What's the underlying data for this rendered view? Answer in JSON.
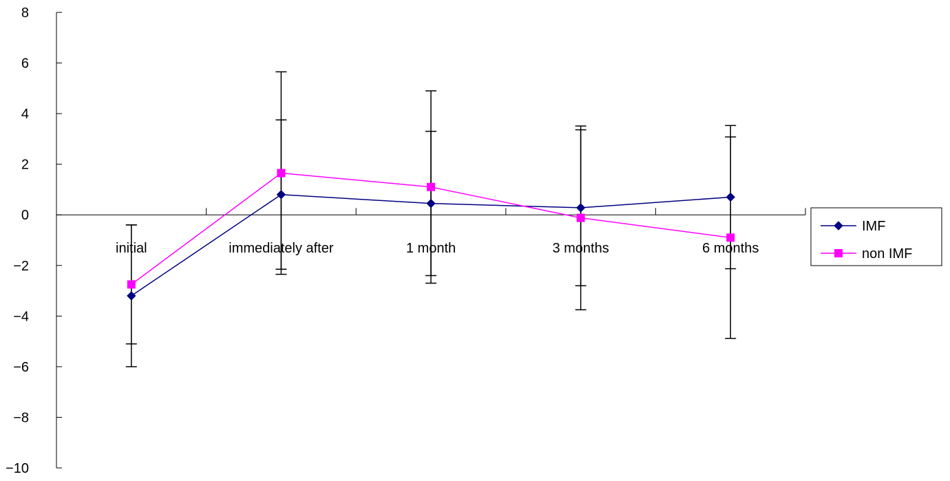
{
  "chart_data": {
    "type": "line",
    "title": "",
    "xlabel": "",
    "ylabel": "",
    "categories": [
      "initial",
      "immediately after",
      "1 month",
      "3 months",
      "6 months"
    ],
    "ylim": [
      -10,
      8
    ],
    "yticks": [
      8,
      6,
      4,
      2,
      0,
      -2,
      -4,
      -6,
      -8,
      -10
    ],
    "ytick_labels": [
      "8",
      "6",
      "4",
      "2",
      "0",
      "−2",
      "−4",
      "−6",
      "−8",
      "−10"
    ],
    "grid": false,
    "legend_position": "right",
    "series": [
      {
        "name": "IMF",
        "color": "#000080",
        "marker": "diamond",
        "values": [
          -3.2,
          0.8,
          0.45,
          0.28,
          0.7
        ],
        "error": [
          2.8,
          2.95,
          2.85,
          3.08,
          2.83
        ]
      },
      {
        "name": "non IMF",
        "color": "#ff00ff",
        "marker": "square",
        "values": [
          -2.75,
          1.65,
          1.1,
          -0.12,
          -0.9
        ],
        "error": [
          2.35,
          4.0,
          3.8,
          3.63,
          3.98
        ]
      }
    ]
  }
}
